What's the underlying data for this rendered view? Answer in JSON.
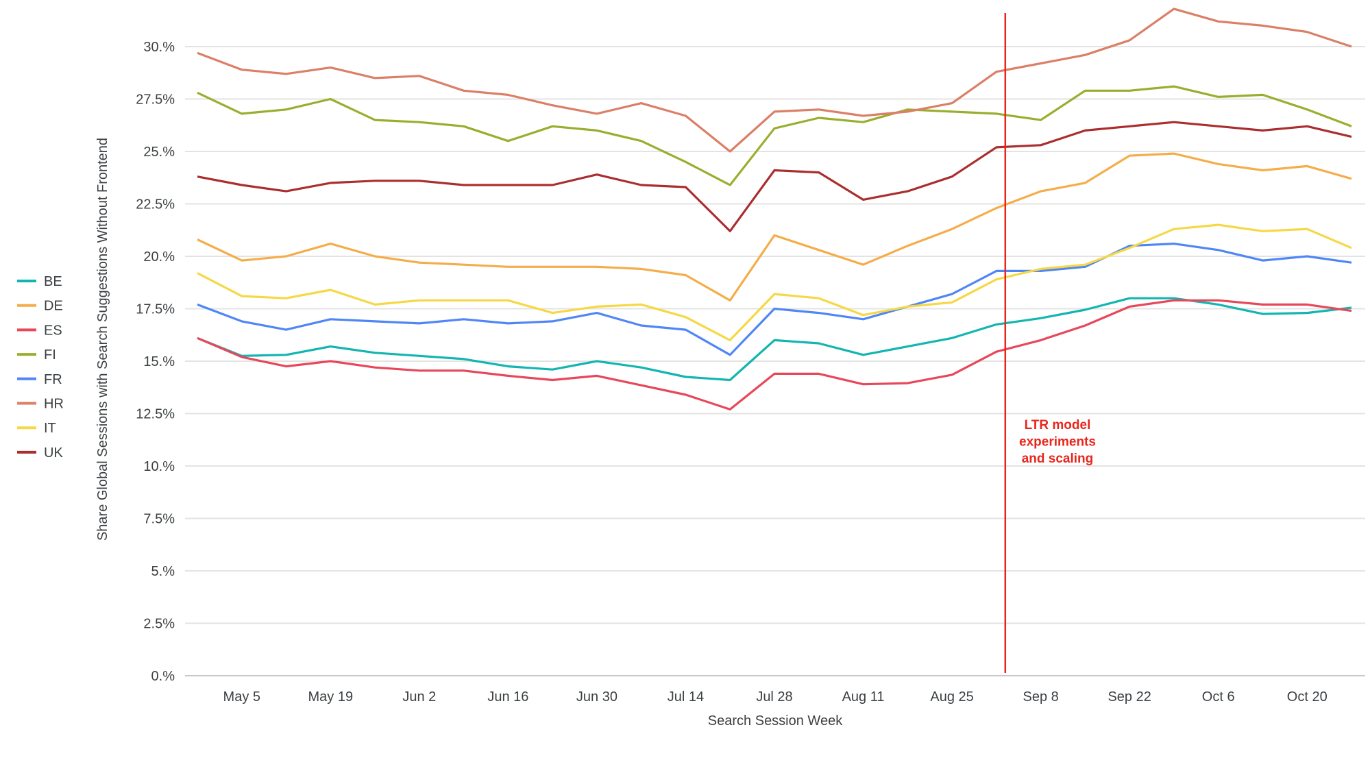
{
  "chart_data": {
    "type": "line",
    "xlabel": "Search Session Week",
    "ylabel": "Share Global Sessions with Search Suggestions Without Frontend",
    "x": [
      "Apr 28",
      "May 5",
      "May 12",
      "May 19",
      "May 26",
      "Jun 2",
      "Jun 9",
      "Jun 16",
      "Jun 23",
      "Jun 30",
      "Jul 7",
      "Jul 14",
      "Jul 21",
      "Jul 28",
      "Aug 4",
      "Aug 11",
      "Aug 18",
      "Aug 25",
      "Sep 1",
      "Sep 8",
      "Sep 15",
      "Sep 22",
      "Sep 29",
      "Oct 6",
      "Oct 13",
      "Oct 20",
      "Oct 27"
    ],
    "x_tick_labels": [
      "May 5",
      "May 19",
      "Jun 2",
      "Jun 16",
      "Jun 30",
      "Jul 14",
      "Jul 28",
      "Aug 11",
      "Aug 25",
      "Sep 8",
      "Sep 22",
      "Oct 6",
      "Oct 20"
    ],
    "y_tick_labels": [
      "0.%",
      "2.5%",
      "5.%",
      "7.5%",
      "10.%",
      "12.5%",
      "15.%",
      "17.5%",
      "20.%",
      "22.5%",
      "25.%",
      "27.5%",
      "30.%"
    ],
    "y_ticks": [
      0,
      2.5,
      5,
      7.5,
      10,
      12.5,
      15,
      17.5,
      20,
      22.5,
      25,
      27.5,
      30
    ],
    "ylim": [
      0,
      31.9
    ],
    "grid": true,
    "legend_placement": "left",
    "series": [
      {
        "name": "BE",
        "color": "#12b5b0",
        "values": [
          16.1,
          15.25,
          15.3,
          15.7,
          15.4,
          15.25,
          15.1,
          14.75,
          14.6,
          15.0,
          14.7,
          14.25,
          14.1,
          16.0,
          15.85,
          15.3,
          15.7,
          16.1,
          16.75,
          17.05,
          17.45,
          18.0,
          18.0,
          17.7,
          17.25,
          17.3,
          17.55
        ]
      },
      {
        "name": "DE",
        "color": "#f5ad4a",
        "values": [
          20.8,
          19.8,
          20.0,
          20.6,
          20.0,
          19.7,
          19.6,
          19.5,
          19.5,
          19.5,
          19.4,
          19.1,
          17.9,
          21.0,
          20.3,
          19.6,
          20.5,
          21.3,
          22.3,
          23.1,
          23.5,
          24.8,
          24.9,
          24.4,
          24.1,
          24.3,
          23.7
        ]
      },
      {
        "name": "ES",
        "color": "#e8475a",
        "values": [
          16.1,
          15.2,
          14.75,
          15.0,
          14.7,
          14.55,
          14.55,
          14.3,
          14.1,
          14.3,
          13.85,
          13.4,
          12.7,
          14.4,
          14.4,
          13.9,
          13.95,
          14.35,
          15.45,
          16.0,
          16.7,
          17.6,
          17.9,
          17.9,
          17.7,
          17.7,
          17.4
        ]
      },
      {
        "name": "FI",
        "color": "#9aae2e",
        "values": [
          27.8,
          26.8,
          27.0,
          27.5,
          26.5,
          26.4,
          26.2,
          25.5,
          26.2,
          26.0,
          25.5,
          24.5,
          23.4,
          26.1,
          26.6,
          26.4,
          27.0,
          26.9,
          26.8,
          26.5,
          27.9,
          27.9,
          28.1,
          27.6,
          27.7,
          27.0,
          26.2
        ]
      },
      {
        "name": "FR",
        "color": "#4f86f7",
        "values": [
          17.7,
          16.9,
          16.5,
          17.0,
          16.9,
          16.8,
          17.0,
          16.8,
          16.9,
          17.3,
          16.7,
          16.5,
          15.3,
          17.5,
          17.3,
          17.0,
          17.6,
          18.2,
          19.3,
          19.3,
          19.5,
          20.5,
          20.6,
          20.3,
          19.8,
          20.0,
          19.7
        ]
      },
      {
        "name": "HR",
        "color": "#db7f66",
        "values": [
          29.7,
          28.9,
          28.7,
          29.0,
          28.5,
          28.6,
          27.9,
          27.7,
          27.2,
          26.8,
          27.3,
          26.7,
          25.0,
          26.9,
          27.0,
          26.7,
          26.9,
          27.3,
          28.8,
          29.2,
          29.6,
          30.3,
          31.8,
          31.2,
          31.0,
          30.7,
          30.0
        ]
      },
      {
        "name": "IT",
        "color": "#f6d845",
        "values": [
          19.2,
          18.1,
          18.0,
          18.4,
          17.7,
          17.9,
          17.9,
          17.9,
          17.3,
          17.6,
          17.7,
          17.1,
          16.0,
          18.2,
          18.0,
          17.2,
          17.6,
          17.8,
          18.9,
          19.4,
          19.6,
          20.4,
          21.3,
          21.5,
          21.2,
          21.3,
          20.4
        ]
      },
      {
        "name": "UK",
        "color": "#ab2e2e",
        "values": [
          23.8,
          23.4,
          23.1,
          23.5,
          23.6,
          23.6,
          23.4,
          23.4,
          23.4,
          23.9,
          23.4,
          23.3,
          21.2,
          24.1,
          24.0,
          22.7,
          23.1,
          23.8,
          25.2,
          25.3,
          26.0,
          26.2,
          26.4,
          26.2,
          26.0,
          26.2,
          25.7
        ]
      }
    ],
    "annotation": {
      "x": "Sep 1",
      "lines": [
        "LTR model",
        "experiments",
        "and scaling"
      ],
      "color": "#e8261c"
    }
  }
}
